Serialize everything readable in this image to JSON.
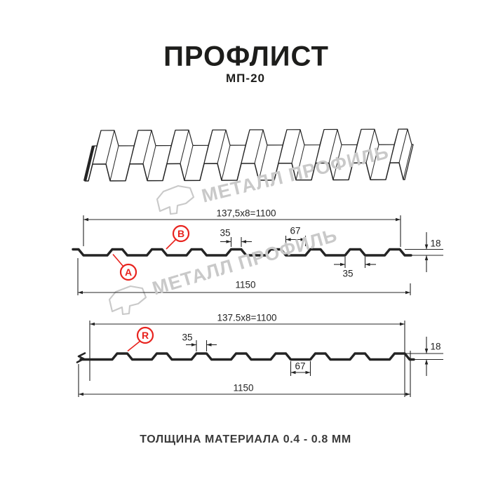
{
  "header": {
    "title": "ПРОФЛИСТ",
    "subtitle": "МП-20"
  },
  "watermark": {
    "text": "МЕТАЛЛ ПРОФИЛЬ"
  },
  "profile1": {
    "marker_a": "A",
    "marker_b": "B",
    "pitch": "137,5x8=1100",
    "rib_top_width": "35",
    "rib_gap": "67",
    "height": "18",
    "rib_base_width": "35",
    "overall_width": "1150"
  },
  "profile2": {
    "marker_r": "R",
    "pitch": "137.5x8=1100",
    "rib_top_width": "35",
    "rib_gap": "67",
    "height": "18",
    "overall_width": "1150"
  },
  "footer": {
    "note": "ТОЛЩИНА МАТЕРИАЛА 0.4 - 0.8 ММ"
  },
  "colors": {
    "accent_red": "#e8231e",
    "line": "#242424",
    "watermark": "#c9c9c9",
    "title_text": "#1d1d1b"
  }
}
